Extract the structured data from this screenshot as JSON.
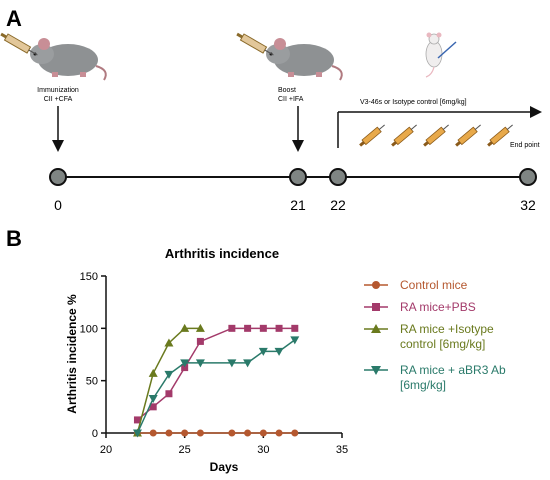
{
  "panel_a": {
    "label": "A",
    "immunization": {
      "line1": "Immunization",
      "line2": "CII +CFA"
    },
    "boost": {
      "line1": "Boost",
      "line2": "CII +IFA"
    },
    "treatment_label": "V3-46s or Isotype control [6mg/kg]",
    "end_point": "End point",
    "timeline_ticks": [
      "0",
      "21",
      "22",
      "32"
    ]
  },
  "panel_b": {
    "label": "B"
  },
  "colors": {
    "control": "#b5582f",
    "pbs": "#a33a6a",
    "isotype": "#6a7a1e",
    "abr3": "#2a7a6a",
    "node": "#7f8583"
  },
  "icons": [
    "mouse-icon",
    "syringe-icon",
    "lab-mouse-icon"
  ],
  "chart_data": {
    "type": "line",
    "title": "Arthritis incidence",
    "xlabel": "Days",
    "ylabel": "Arthritis incidence %",
    "xlim": [
      20,
      35
    ],
    "ylim": [
      0,
      150
    ],
    "xticks": [
      20,
      25,
      30,
      35
    ],
    "yticks": [
      0,
      50,
      100,
      150
    ],
    "grid": false,
    "legend_position": "right",
    "series": [
      {
        "key": "control",
        "name": "Control mice",
        "marker": "circle",
        "x": [
          22,
          23,
          24,
          25,
          26,
          28,
          29,
          30,
          31,
          32
        ],
        "y": [
          0,
          0,
          0,
          0,
          0,
          0,
          0,
          0,
          0,
          0
        ]
      },
      {
        "key": "pbs",
        "name": "RA mice+PBS",
        "marker": "square",
        "x": [
          22,
          23,
          24,
          25,
          26,
          28,
          29,
          30,
          31,
          32
        ],
        "y": [
          12.5,
          25,
          37.5,
          62.5,
          87.5,
          100,
          100,
          100,
          100,
          100
        ]
      },
      {
        "key": "isotype",
        "name": "RA mice +Isotype control [6mg/kg]",
        "marker": "triangle-up",
        "x": [
          22,
          23,
          24,
          25,
          26
        ],
        "y": [
          0,
          57,
          86,
          100,
          100
        ]
      },
      {
        "key": "abr3",
        "name": "RA mice + aBR3 Ab [6mg/kg]",
        "marker": "triangle-down",
        "x": [
          22,
          23,
          24,
          25,
          26,
          28,
          29,
          30,
          31,
          32
        ],
        "y": [
          0,
          33,
          56,
          67,
          67,
          67,
          67,
          78,
          78,
          89
        ]
      }
    ]
  }
}
